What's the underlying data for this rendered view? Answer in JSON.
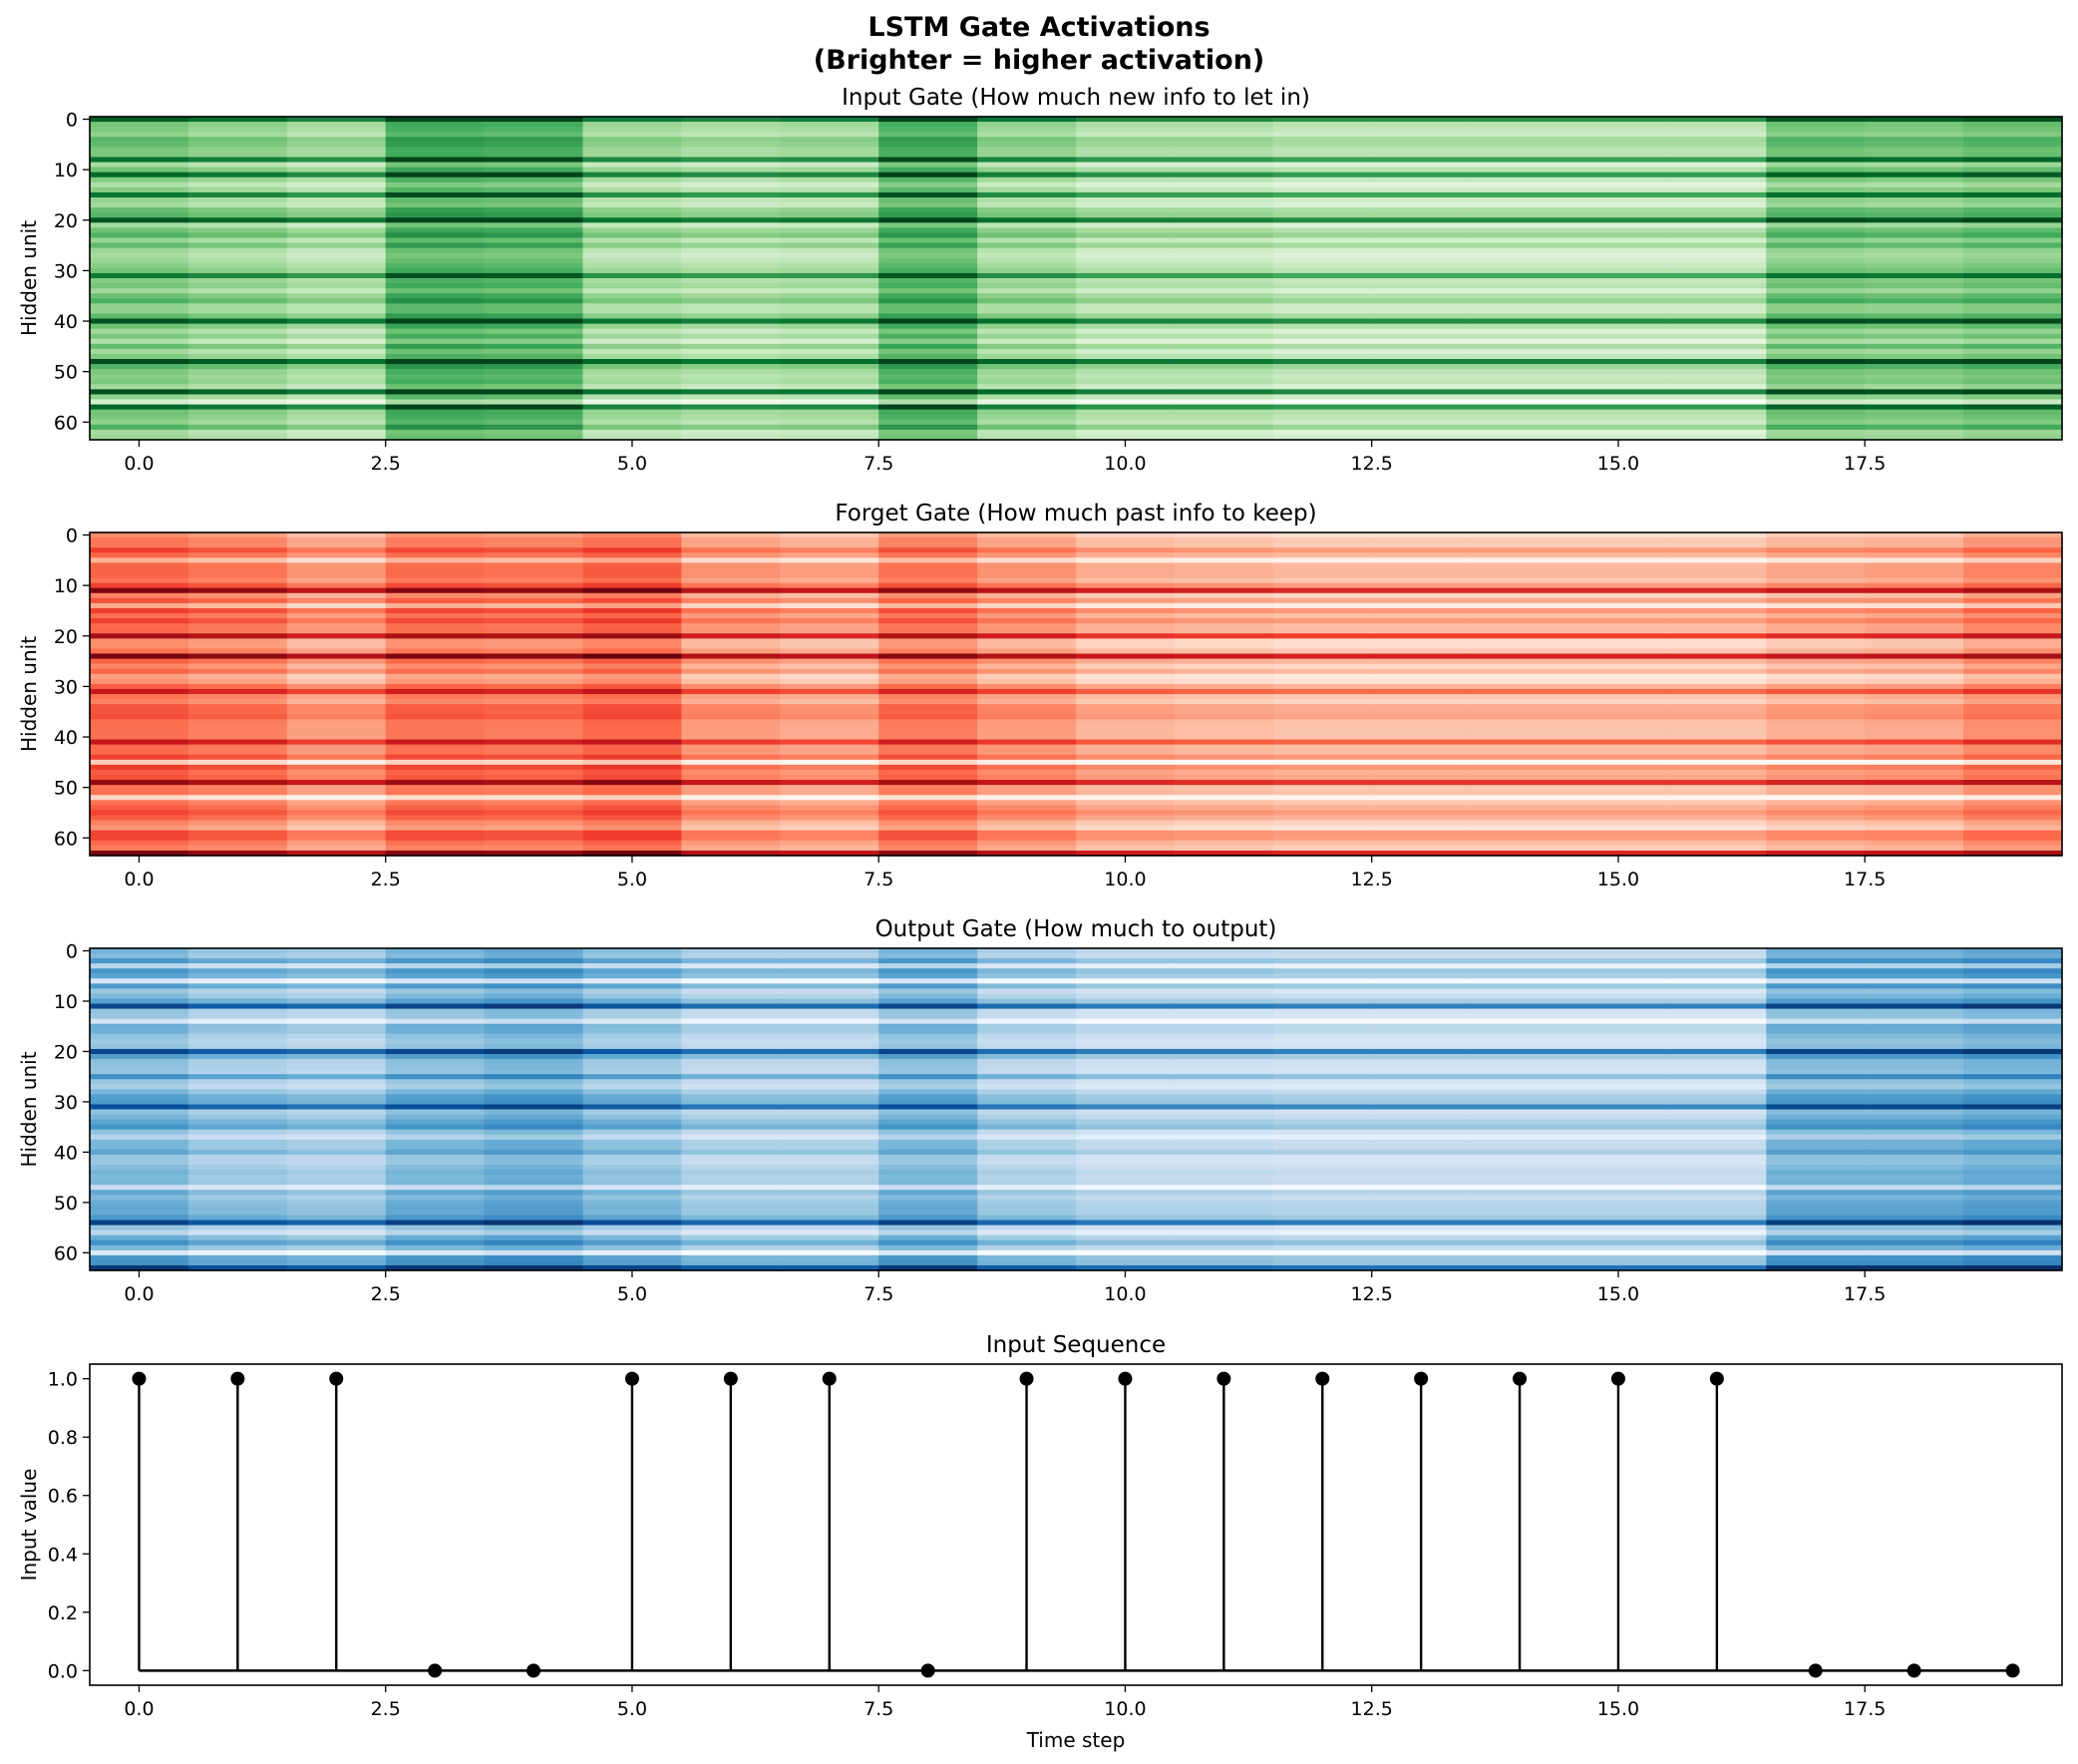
{
  "title_line1": "LSTM Gate Activations",
  "title_line2": "(Brighter = higher activation)",
  "chart_data": [
    {
      "type": "heatmap",
      "title": "Input Gate (How much new info to let in)",
      "colormap": "Greens",
      "ylabel": "Hidden unit",
      "xlabel": "",
      "time_steps": 20,
      "hidden_units": 64,
      "xlim": [
        -0.5,
        19.5
      ],
      "ylim": [
        63.5,
        -0.5
      ],
      "xticks": [
        0.0,
        2.5,
        5.0,
        7.5,
        10.0,
        12.5,
        15.0,
        17.5
      ],
      "xtick_labels": [
        "0.0",
        "2.5",
        "5.0",
        "7.5",
        "10.0",
        "12.5",
        "15.0",
        "17.5"
      ],
      "yticks": [
        0,
        10,
        20,
        30,
        40,
        50,
        60
      ],
      "ytick_labels": [
        "0",
        "10",
        "20",
        "30",
        "40",
        "50",
        "60"
      ],
      "column_level": [
        0.48,
        0.42,
        0.35,
        0.62,
        0.6,
        0.38,
        0.34,
        0.36,
        0.6,
        0.4,
        0.32,
        0.32,
        0.28,
        0.28,
        0.28,
        0.28,
        0.28,
        0.5,
        0.48,
        0.52
      ],
      "strong_rows": [
        0,
        8,
        11,
        15,
        20,
        31,
        40,
        48,
        54,
        57
      ],
      "weak_rows": [
        13,
        17,
        27,
        44,
        56,
        62
      ]
    },
    {
      "type": "heatmap",
      "title": "Forget Gate (How much past info to keep)",
      "colormap": "Reds",
      "ylabel": "Hidden unit",
      "xlabel": "",
      "time_steps": 20,
      "hidden_units": 64,
      "xlim": [
        -0.5,
        19.5
      ],
      "ylim": [
        63.5,
        -0.5
      ],
      "xticks": [
        0.0,
        2.5,
        5.0,
        7.5,
        10.0,
        12.5,
        15.0,
        17.5
      ],
      "xtick_labels": [
        "0.0",
        "2.5",
        "5.0",
        "7.5",
        "10.0",
        "12.5",
        "15.0",
        "17.5"
      ],
      "yticks": [
        0,
        10,
        20,
        30,
        40,
        50,
        60
      ],
      "ytick_labels": [
        "0",
        "10",
        "20",
        "30",
        "40",
        "50",
        "60"
      ],
      "column_level": [
        0.5,
        0.45,
        0.35,
        0.48,
        0.46,
        0.52,
        0.36,
        0.32,
        0.46,
        0.36,
        0.28,
        0.26,
        0.24,
        0.24,
        0.24,
        0.24,
        0.24,
        0.3,
        0.32,
        0.4
      ],
      "strong_rows": [
        11,
        20,
        24,
        31,
        41,
        49,
        63
      ],
      "weak_rows": [
        5,
        14,
        28,
        45,
        52,
        58
      ]
    },
    {
      "type": "heatmap",
      "title": "Output Gate (How much to output)",
      "colormap": "Blues",
      "ylabel": "Hidden unit",
      "xlabel": "",
      "time_steps": 20,
      "hidden_units": 64,
      "xlim": [
        -0.5,
        19.5
      ],
      "ylim": [
        63.5,
        -0.5
      ],
      "xticks": [
        0.0,
        2.5,
        5.0,
        7.5,
        10.0,
        12.5,
        15.0,
        17.5
      ],
      "xtick_labels": [
        "0.0",
        "2.5",
        "5.0",
        "7.5",
        "10.0",
        "12.5",
        "15.0",
        "17.5"
      ],
      "yticks": [
        0,
        10,
        20,
        30,
        40,
        50,
        60
      ],
      "ytick_labels": [
        "0",
        "10",
        "20",
        "30",
        "40",
        "50",
        "60"
      ],
      "column_level": [
        0.5,
        0.42,
        0.38,
        0.5,
        0.55,
        0.45,
        0.36,
        0.36,
        0.5,
        0.36,
        0.3,
        0.3,
        0.28,
        0.28,
        0.28,
        0.28,
        0.28,
        0.52,
        0.52,
        0.56
      ],
      "strong_rows": [
        11,
        20,
        31,
        54,
        63
      ],
      "weak_rows": [
        3,
        6,
        14,
        27,
        37,
        47,
        56,
        60
      ]
    },
    {
      "type": "stem",
      "title": "Input Sequence",
      "xlabel": "Time step",
      "ylabel": "Input value",
      "x": [
        0,
        1,
        2,
        3,
        4,
        5,
        6,
        7,
        8,
        9,
        10,
        11,
        12,
        13,
        14,
        15,
        16,
        17,
        18,
        19
      ],
      "values": [
        1,
        1,
        1,
        0,
        0,
        1,
        1,
        1,
        0,
        1,
        1,
        1,
        1,
        1,
        1,
        1,
        1,
        0,
        0,
        0
      ],
      "xlim": [
        -0.5,
        19.5
      ],
      "ylim": [
        -0.05,
        1.05
      ],
      "xticks": [
        0.0,
        2.5,
        5.0,
        7.5,
        10.0,
        12.5,
        15.0,
        17.5
      ],
      "xtick_labels": [
        "0.0",
        "2.5",
        "5.0",
        "7.5",
        "10.0",
        "12.5",
        "15.0",
        "17.5"
      ],
      "yticks": [
        0.0,
        0.2,
        0.4,
        0.6,
        0.8,
        1.0
      ],
      "ytick_labels": [
        "0.0",
        "0.2",
        "0.4",
        "0.6",
        "0.8",
        "1.0"
      ]
    }
  ]
}
